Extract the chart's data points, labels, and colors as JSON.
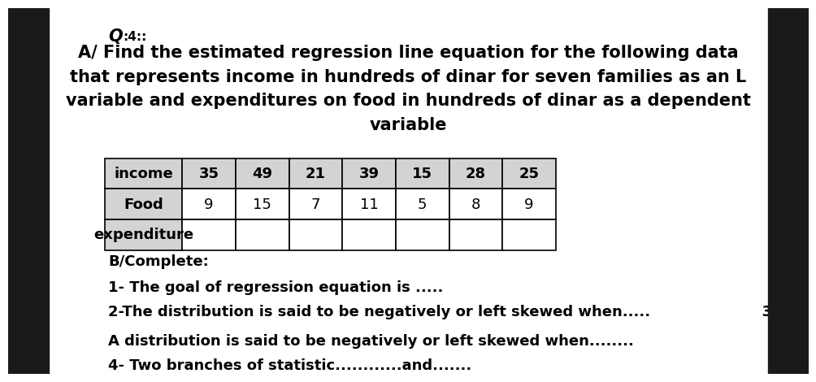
{
  "bg_color": "#ffffff",
  "border_color": "#000000",
  "question_label": "Q",
  "question_number": ":4::",
  "part_a_text": "A/ Find the estimated regression line equation for the following data\nthat represents income in hundreds of dinar for seven families as an L\nvariable and expenditures on food in hundreds of dinar as a dependent\nvariable",
  "table_headers": [
    "income",
    "35",
    "49",
    "21",
    "39",
    "15",
    "28",
    "25"
  ],
  "table_row2": [
    "Food",
    "9",
    "15",
    "7",
    "11",
    "5",
    "8",
    "9"
  ],
  "table_row3": [
    "expenditure",
    "",
    "",
    "",
    "",
    "",
    "",
    ""
  ],
  "header_bg": "#d3d3d3",
  "table_border": "#000000",
  "part_b_title": "B/Complete:",
  "items": [
    "1- The goal of regression equation is .....",
    "2-The distribution is said to be negatively or left skewed when.....                      3-",
    "A distribution is said to be negatively or left skewed when........",
    "4- Two branches of statistic............and......."
  ],
  "font_size_title": 15,
  "font_size_body": 13,
  "font_size_table": 13,
  "text_color": "#000000"
}
